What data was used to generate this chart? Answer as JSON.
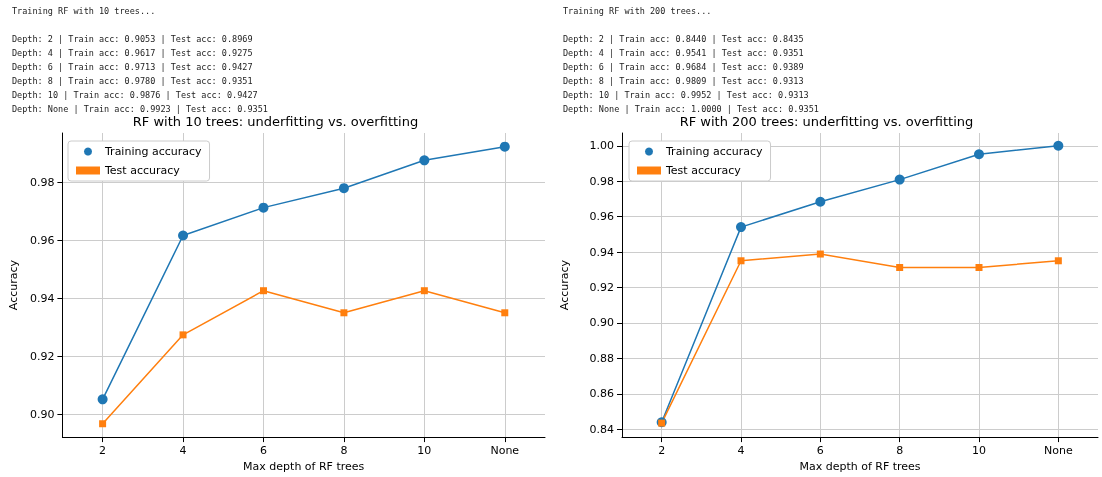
{
  "chart_data": [
    {
      "type": "line",
      "title": "RF with 10 trees: underfitting vs. overfitting",
      "xlabel": "Max depth of RF trees",
      "ylabel": "Accuracy",
      "annotations": [
        "Training RF with 10 trees...",
        "Depth: 2 | Train acc: 0.9053 | Test acc: 0.8969",
        "Depth: 4 | Train acc: 0.9617 | Test acc: 0.9275",
        "Depth: 6 | Train acc: 0.9713 | Test acc: 0.9427",
        "Depth: 8 | Train acc: 0.9780 | Test acc: 0.9351",
        "Depth: 10 | Train acc: 0.9876 | Test acc: 0.9427",
        "Depth: None | Train acc: 0.9923 | Test acc: 0.9351"
      ],
      "categories": [
        "2",
        "4",
        "6",
        "8",
        "10",
        "None"
      ],
      "series": [
        {
          "name": "Training accuracy",
          "color": "#1f77b4",
          "marker": "circle",
          "values": [
            0.9053,
            0.9617,
            0.9713,
            0.978,
            0.9876,
            0.9923
          ]
        },
        {
          "name": "Test accuracy",
          "color": "#ff7f0e",
          "marker": "square",
          "values": [
            0.8969,
            0.9275,
            0.9427,
            0.9351,
            0.9427,
            0.9351
          ]
        }
      ],
      "ylim": [
        0.8923,
        0.997
      ],
      "yticks": [
        {
          "value": 0.9,
          "label": "0.90"
        },
        {
          "value": 0.92,
          "label": "0.92"
        },
        {
          "value": 0.94,
          "label": "0.94"
        },
        {
          "value": 0.96,
          "label": "0.96"
        },
        {
          "value": 0.98,
          "label": "0.98"
        }
      ],
      "grid": true,
      "legend": "top left",
      "line_style": "solid"
    },
    {
      "type": "line",
      "title": "RF with 200 trees: underfitting vs. overfitting",
      "xlabel": "Max depth of RF trees",
      "ylabel": "Accuracy",
      "annotations": [
        "Training RF with 200 trees...",
        "Depth: 2 | Train acc: 0.8440 | Test acc: 0.8435",
        "Depth: 4 | Train acc: 0.9541 | Test acc: 0.9351",
        "Depth: 6 | Train acc: 0.9684 | Test acc: 0.9389",
        "Depth: 8 | Train acc: 0.9809 | Test acc: 0.9313",
        "Depth: 10 | Train acc: 0.9952 | Test acc: 0.9313",
        "Depth: None | Train acc: 1.0000 | Test acc: 0.9351"
      ],
      "categories": [
        "2",
        "4",
        "6",
        "8",
        "10",
        "None"
      ],
      "series": [
        {
          "name": "Training accuracy",
          "color": "#1f77b4",
          "marker": "circle",
          "values": [
            0.844,
            0.9541,
            0.9684,
            0.9809,
            0.9952,
            1.0
          ]
        },
        {
          "name": "Test accuracy",
          "color": "#ff7f0e",
          "marker": "square",
          "values": [
            0.8435,
            0.9351,
            0.9389,
            0.9313,
            0.9313,
            0.9351
          ]
        }
      ],
      "ylim": [
        0.8356,
        1.0072
      ],
      "yticks": [
        {
          "value": 0.84,
          "label": "0.84"
        },
        {
          "value": 0.86,
          "label": "0.86"
        },
        {
          "value": 0.88,
          "label": "0.88"
        },
        {
          "value": 0.9,
          "label": "0.90"
        },
        {
          "value": 0.92,
          "label": "0.92"
        },
        {
          "value": 0.94,
          "label": "0.94"
        },
        {
          "value": 0.96,
          "label": "0.96"
        },
        {
          "value": 0.98,
          "label": "0.98"
        },
        {
          "value": 1.0,
          "label": "1.00"
        }
      ],
      "grid": true,
      "legend": "top left",
      "line_style": "solid"
    }
  ]
}
